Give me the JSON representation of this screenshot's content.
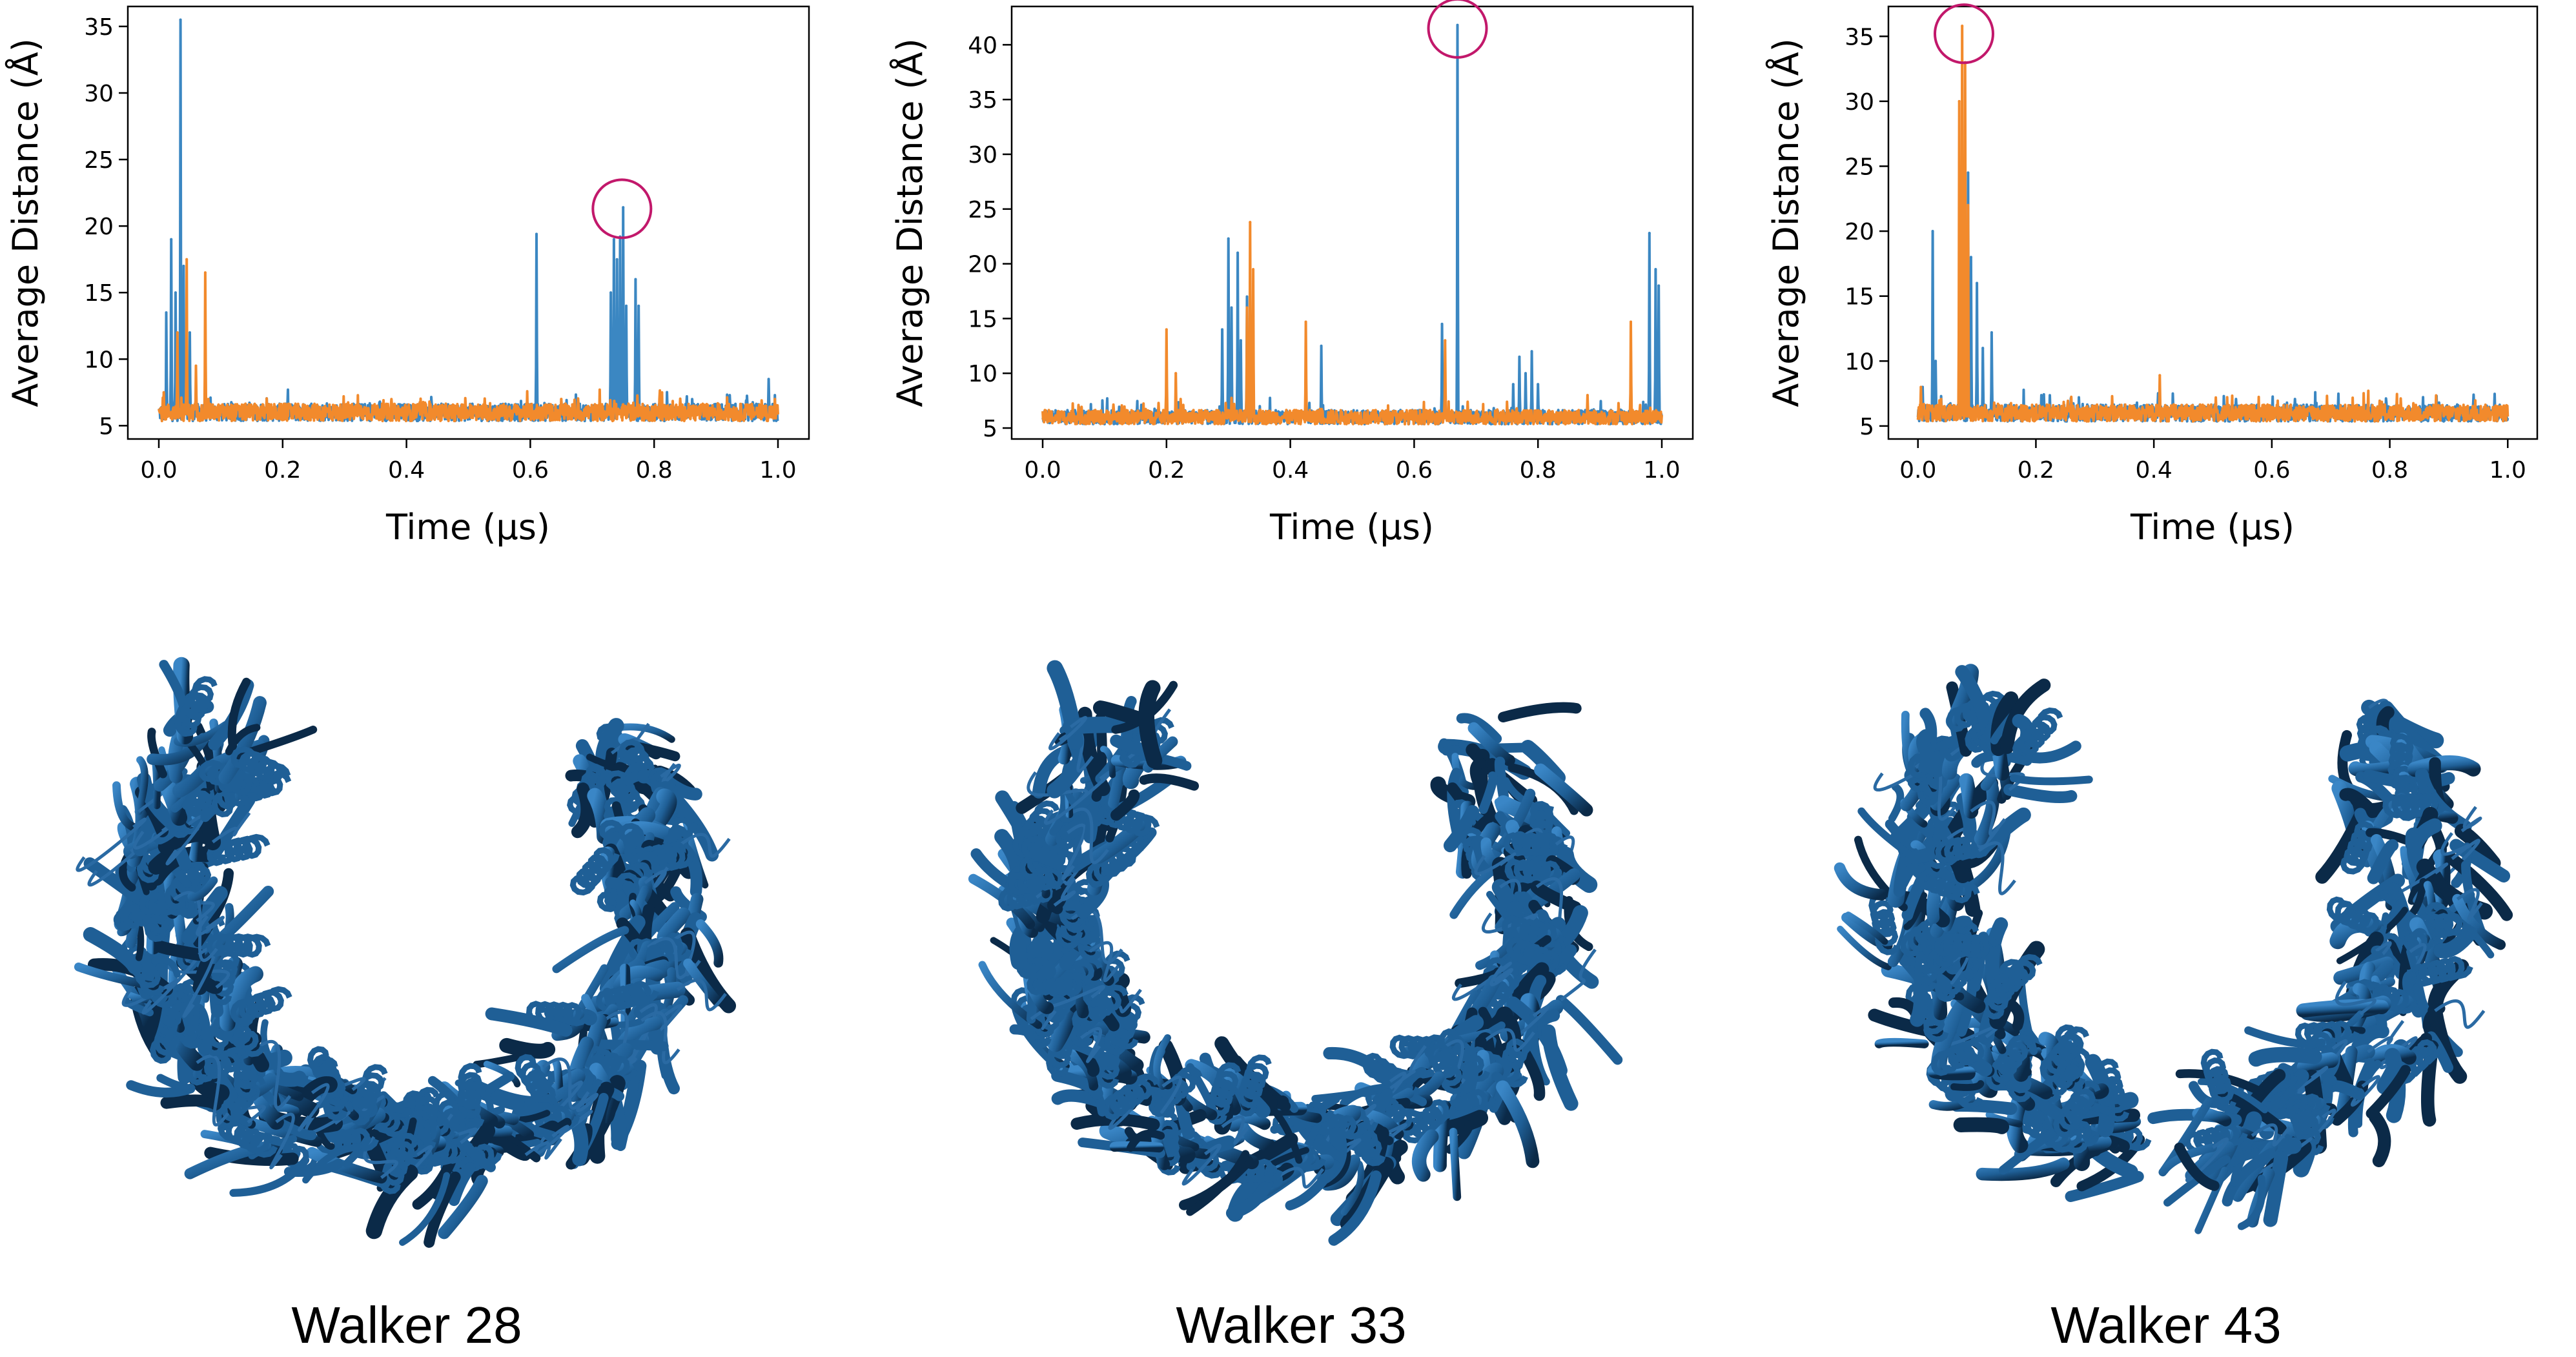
{
  "figure": {
    "panels": [
      {
        "caption": "Walker 28"
      },
      {
        "caption": "Walker 33"
      },
      {
        "caption": "Walker 43"
      }
    ]
  },
  "colors": {
    "series_blue": "#3b87c2",
    "series_orange": "#f28a2c",
    "highlight_circle": "#c2186b",
    "protein": "#1f5f96",
    "protein_dark": "#0b2a48"
  },
  "chart_data": [
    {
      "type": "line",
      "title": "",
      "xlabel": "Time (µs)",
      "ylabel": "Average Distance (Å)",
      "xlim": [
        0.0,
        1.0
      ],
      "ylim": [
        4.0,
        36.5
      ],
      "xticks": [
        "0.0",
        "0.2",
        "0.4",
        "0.6",
        "0.8",
        "1.0"
      ],
      "yticks": [
        "5",
        "10",
        "15",
        "20",
        "25",
        "30",
        "35"
      ],
      "baseline": 6.0,
      "series": [
        {
          "name": "blue",
          "color": "#3b87c2",
          "spikes": [
            [
              0.012,
              13.5
            ],
            [
              0.02,
              19.0
            ],
            [
              0.027,
              15.0
            ],
            [
              0.035,
              35.5
            ],
            [
              0.04,
              17.0
            ],
            [
              0.05,
              12.0
            ],
            [
              0.61,
              19.4
            ],
            [
              0.73,
              15.0
            ],
            [
              0.735,
              19.0
            ],
            [
              0.74,
              17.5
            ],
            [
              0.745,
              19.2
            ],
            [
              0.75,
              21.4
            ],
            [
              0.755,
              14.0
            ],
            [
              0.77,
              16.0
            ],
            [
              0.775,
              14.0
            ],
            [
              0.985,
              8.5
            ]
          ]
        },
        {
          "name": "orange",
          "color": "#f28a2c",
          "spikes": [
            [
              0.008,
              7.5
            ],
            [
              0.03,
              12.0
            ],
            [
              0.045,
              17.5
            ],
            [
              0.06,
              9.5
            ],
            [
              0.075,
              16.5
            ],
            [
              0.08,
              7.0
            ],
            [
              0.65,
              7.0
            ],
            [
              0.995,
              7.0
            ]
          ]
        }
      ],
      "highlight": {
        "x": 0.748,
        "y": 21.3
      }
    },
    {
      "type": "line",
      "title": "",
      "xlabel": "Time (µs)",
      "ylabel": "Average Distance (Å)",
      "xlim": [
        0.0,
        1.0
      ],
      "ylim": [
        4.0,
        43.5
      ],
      "xticks": [
        "0.0",
        "0.2",
        "0.4",
        "0.6",
        "0.8",
        "1.0"
      ],
      "yticks": [
        "5",
        "10",
        "15",
        "20",
        "25",
        "30",
        "35",
        "40"
      ],
      "baseline": 6.0,
      "series": [
        {
          "name": "blue",
          "color": "#3b87c2",
          "spikes": [
            [
              0.29,
              14.0
            ],
            [
              0.3,
              22.3
            ],
            [
              0.305,
              16.0
            ],
            [
              0.315,
              21.0
            ],
            [
              0.32,
              13.0
            ],
            [
              0.33,
              17.0
            ],
            [
              0.335,
              18.0
            ],
            [
              0.34,
              11.0
            ],
            [
              0.45,
              12.5
            ],
            [
              0.645,
              14.5
            ],
            [
              0.67,
              41.8
            ],
            [
              0.76,
              9.0
            ],
            [
              0.77,
              11.5
            ],
            [
              0.78,
              10.0
            ],
            [
              0.79,
              12.0
            ],
            [
              0.8,
              9.0
            ],
            [
              0.98,
              22.8
            ],
            [
              0.99,
              19.5
            ],
            [
              0.995,
              18.0
            ]
          ]
        },
        {
          "name": "orange",
          "color": "#f28a2c",
          "spikes": [
            [
              0.2,
              14.0
            ],
            [
              0.215,
              10.0
            ],
            [
              0.33,
              16.0
            ],
            [
              0.335,
              23.8
            ],
            [
              0.34,
              19.5
            ],
            [
              0.425,
              14.7
            ],
            [
              0.65,
              13.0
            ],
            [
              0.88,
              8.0
            ],
            [
              0.95,
              14.7
            ]
          ]
        }
      ],
      "highlight": {
        "x": 0.67,
        "y": 41.5
      }
    },
    {
      "type": "line",
      "title": "",
      "xlabel": "Time (µs)",
      "ylabel": "Average Distance (Å)",
      "xlim": [
        0.0,
        1.0
      ],
      "ylim": [
        4.0,
        37.3
      ],
      "xticks": [
        "0.0",
        "0.2",
        "0.4",
        "0.6",
        "0.8",
        "1.0"
      ],
      "yticks": [
        "5",
        "10",
        "15",
        "20",
        "25",
        "30",
        "35"
      ],
      "baseline": 6.0,
      "series": [
        {
          "name": "blue",
          "color": "#3b87c2",
          "spikes": [
            [
              0.008,
              8.0
            ],
            [
              0.025,
              20.0
            ],
            [
              0.03,
              10.0
            ],
            [
              0.07,
              12.0
            ],
            [
              0.085,
              24.5
            ],
            [
              0.09,
              18.0
            ],
            [
              0.1,
              16.0
            ],
            [
              0.11,
              11.0
            ],
            [
              0.125,
              12.2
            ]
          ]
        },
        {
          "name": "orange",
          "color": "#f28a2c",
          "spikes": [
            [
              0.005,
              8.0
            ],
            [
              0.07,
              30.0
            ],
            [
              0.075,
              35.8
            ],
            [
              0.08,
              33.0
            ],
            [
              0.085,
              22.0
            ],
            [
              0.41,
              8.9
            ]
          ]
        }
      ],
      "highlight": {
        "x": 0.078,
        "y": 35.2
      }
    }
  ]
}
